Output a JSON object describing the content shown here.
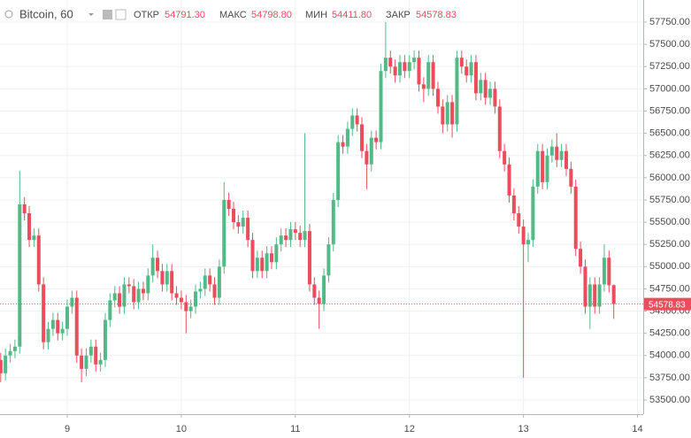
{
  "chart_data": {
    "type": "candlestick",
    "title": "Bitcoin, 60",
    "ohlc_labels": [
      "ОТКР",
      "МАКС",
      "МИН",
      "ЗАКР"
    ],
    "ohlc_value_labels": [
      "54791.30",
      "54798.80",
      "54411.80",
      "54578.83"
    ],
    "up_color": "#53b987",
    "down_color": "#eb4d5c",
    "x": [
      -14,
      -13,
      -12,
      -11,
      -10,
      -9,
      -8,
      -7,
      -6,
      -5,
      -4,
      -3,
      -2,
      -1,
      0,
      1,
      2,
      3,
      4,
      5,
      6,
      7,
      8,
      9,
      10,
      11,
      12,
      13,
      14,
      15,
      16,
      17,
      18,
      19,
      20,
      21,
      22,
      23,
      24,
      25,
      26,
      27,
      28,
      29,
      30,
      31,
      32,
      33,
      34,
      35,
      36,
      37,
      38,
      39,
      40,
      41,
      42,
      43,
      44,
      45,
      46,
      47,
      48,
      49,
      50,
      51,
      52,
      53,
      54,
      55,
      56,
      57,
      58,
      59,
      60,
      61,
      62,
      63,
      64,
      65,
      66,
      67,
      68,
      69,
      70,
      71,
      72,
      73,
      74,
      75,
      76,
      77,
      78,
      79,
      80,
      81,
      82,
      83,
      84,
      85,
      86,
      87,
      88,
      89,
      90,
      91,
      92,
      93,
      94,
      95,
      96,
      97,
      98,
      99,
      100,
      101,
      102,
      103,
      104,
      105,
      106,
      107,
      108,
      109,
      110,
      111,
      112,
      113,
      114,
      115
    ],
    "open": [
      53950,
      53800,
      54000,
      54050,
      54100,
      55700,
      55600,
      55300,
      55350,
      54800,
      54150,
      54300,
      54400,
      54250,
      54300,
      54550,
      54650,
      54000,
      53850,
      54000,
      54100,
      53900,
      53950,
      54400,
      54620,
      54700,
      54550,
      54800,
      54780,
      54600,
      54750,
      54700,
      54900,
      55100,
      54950,
      54800,
      54950,
      54700,
      54650,
      54600,
      54500,
      54550,
      54720,
      54750,
      54900,
      54800,
      54650,
      55000,
      55750,
      55650,
      55500,
      55450,
      55550,
      55300,
      54950,
      55100,
      54950,
      55150,
      55050,
      55250,
      55350,
      55300,
      55420,
      55380,
      55300,
      55400,
      54800,
      54650,
      54580,
      54900,
      55250,
      55750,
      56400,
      56350,
      56550,
      56700,
      56600,
      56300,
      56150,
      56450,
      56400,
      57200,
      57350,
      57250,
      57150,
      57300,
      57200,
      57300,
      57350,
      57050,
      57000,
      57300,
      57000,
      56800,
      56600,
      56850,
      56600,
      57350,
      57250,
      57150,
      57300,
      56950,
      57100,
      56900,
      57000,
      56800,
      56300,
      56150,
      55800,
      55600,
      55450,
      55250,
      55300,
      55900,
      56300,
      55950,
      56250,
      56350,
      56200,
      56300,
      56100,
      55900,
      55200,
      55000,
      54550,
      54800,
      54550,
      54800,
      55100,
      54791.3
    ],
    "high": [
      54030,
      54080,
      54130,
      54180,
      56080,
      55780,
      55680,
      55430,
      55430,
      54880,
      54380,
      54480,
      54480,
      54380,
      54630,
      54730,
      54730,
      54080,
      54080,
      54180,
      54180,
      54030,
      54480,
      54700,
      54780,
      54780,
      54880,
      54880,
      54860,
      54830,
      54830,
      54980,
      55250,
      55180,
      55030,
      55030,
      55030,
      54780,
      54730,
      54680,
      54630,
      54800,
      54830,
      54980,
      54980,
      54880,
      55080,
      55950,
      55830,
      55730,
      55580,
      55630,
      55630,
      55380,
      55180,
      55180,
      55230,
      55230,
      55330,
      55430,
      55430,
      55500,
      55500,
      55460,
      56500,
      55480,
      54880,
      54730,
      54980,
      55330,
      55830,
      56480,
      56480,
      56630,
      56780,
      56780,
      56680,
      56380,
      56530,
      56530,
      57280,
      57750,
      57430,
      57330,
      57380,
      57380,
      57380,
      57430,
      57430,
      57130,
      57380,
      57380,
      57080,
      56880,
      56930,
      56930,
      57430,
      57430,
      57330,
      57380,
      57380,
      57180,
      57180,
      57080,
      57080,
      56880,
      56380,
      56230,
      55880,
      55680,
      55530,
      55380,
      55980,
      56380,
      56380,
      56330,
      56430,
      56500,
      56380,
      56380,
      56180,
      55980,
      55280,
      55080,
      54880,
      54880,
      54880,
      55250,
      55180,
      54798.8
    ],
    "low": [
      53700,
      53720,
      53920,
      53970,
      54020,
      55520,
      55220,
      55220,
      54720,
      54070,
      54070,
      54220,
      54170,
      54170,
      54220,
      54470,
      53920,
      53700,
      53770,
      53920,
      53820,
      53820,
      53870,
      54320,
      54540,
      54470,
      54470,
      54700,
      54520,
      54520,
      54620,
      54620,
      54820,
      54870,
      54720,
      54720,
      54620,
      54570,
      54520,
      54250,
      54420,
      54470,
      54640,
      54670,
      54720,
      54570,
      54570,
      54920,
      55570,
      55420,
      55370,
      55370,
      55220,
      54870,
      54870,
      54870,
      54870,
      54970,
      54970,
      55170,
      55220,
      55220,
      55300,
      55220,
      55220,
      54720,
      54570,
      54300,
      54500,
      54820,
      55170,
      55670,
      56270,
      56270,
      56470,
      56520,
      56220,
      55870,
      56070,
      56320,
      56320,
      57120,
      57170,
      57070,
      57070,
      57120,
      57120,
      57220,
      56970,
      56850,
      56920,
      56920,
      56720,
      56500,
      56520,
      56450,
      56520,
      57170,
      57070,
      57070,
      56870,
      56870,
      56820,
      56820,
      56720,
      56220,
      56070,
      55720,
      55520,
      55370,
      53750,
      55050,
      55220,
      55820,
      55870,
      55870,
      56170,
      56120,
      56120,
      56020,
      55820,
      55120,
      54920,
      54470,
      54300,
      54470,
      54470,
      54720,
      54710,
      54411.8
    ],
    "close": [
      53800,
      54000,
      54050,
      54100,
      55700,
      55600,
      55300,
      55350,
      54800,
      54150,
      54300,
      54400,
      54250,
      54300,
      54550,
      54650,
      54000,
      53850,
      54000,
      54100,
      53900,
      53950,
      54400,
      54620,
      54700,
      54550,
      54800,
      54780,
      54600,
      54750,
      54700,
      54900,
      55100,
      54950,
      54800,
      54950,
      54700,
      54650,
      54600,
      54500,
      54550,
      54720,
      54750,
      54900,
      54800,
      54650,
      55000,
      55750,
      55650,
      55500,
      55450,
      55550,
      55300,
      54950,
      55100,
      54950,
      55150,
      55050,
      55250,
      55350,
      55300,
      55420,
      55380,
      55300,
      55400,
      54800,
      54650,
      54580,
      54900,
      55250,
      55750,
      56400,
      56350,
      56550,
      56700,
      56600,
      56300,
      56150,
      56450,
      56400,
      57200,
      57350,
      57250,
      57150,
      57300,
      57200,
      57300,
      57350,
      57050,
      57000,
      57300,
      57000,
      56800,
      56600,
      56850,
      56600,
      57350,
      57250,
      57150,
      57300,
      56950,
      57100,
      56900,
      57000,
      56800,
      56300,
      56150,
      55800,
      55600,
      55450,
      55250,
      55300,
      55900,
      56300,
      55950,
      56250,
      56350,
      56200,
      56300,
      56100,
      55900,
      55200,
      55000,
      54550,
      54800,
      54550,
      54800,
      55100,
      54790,
      54578.83
    ],
    "xlim": [
      -14.15,
      121.2
    ],
    "xticks": [
      {
        "value": 0,
        "label": "9"
      },
      {
        "value": 24,
        "label": "10"
      },
      {
        "value": 48,
        "label": "11"
      },
      {
        "value": 72,
        "label": "12"
      },
      {
        "value": 96,
        "label": "13"
      },
      {
        "value": 120,
        "label": "14"
      }
    ],
    "ylim": [
      53341,
      57999
    ],
    "yticks": [
      {
        "value": 53500,
        "label": "53500.00"
      },
      {
        "value": 53750,
        "label": "53750.00"
      },
      {
        "value": 54000,
        "label": "54000.00"
      },
      {
        "value": 54250,
        "label": "54250.00"
      },
      {
        "value": 54500,
        "label": "54500.00"
      },
      {
        "value": 54750,
        "label": "54750.00"
      },
      {
        "value": 55000,
        "label": "55000.00"
      },
      {
        "value": 55250,
        "label": "55250.00"
      },
      {
        "value": 55500,
        "label": "55500.00"
      },
      {
        "value": 55750,
        "label": "55750.00"
      },
      {
        "value": 56000,
        "label": "56000.00"
      },
      {
        "value": 56250,
        "label": "56250.00"
      },
      {
        "value": 56500,
        "label": "56500.00"
      },
      {
        "value": 56750,
        "label": "56750.00"
      },
      {
        "value": 57000,
        "label": "57000.00"
      },
      {
        "value": 57250,
        "label": "57250.00"
      },
      {
        "value": 57500,
        "label": "57500.00"
      },
      {
        "value": 57750,
        "label": "57750.00"
      }
    ],
    "grid": true
  }
}
